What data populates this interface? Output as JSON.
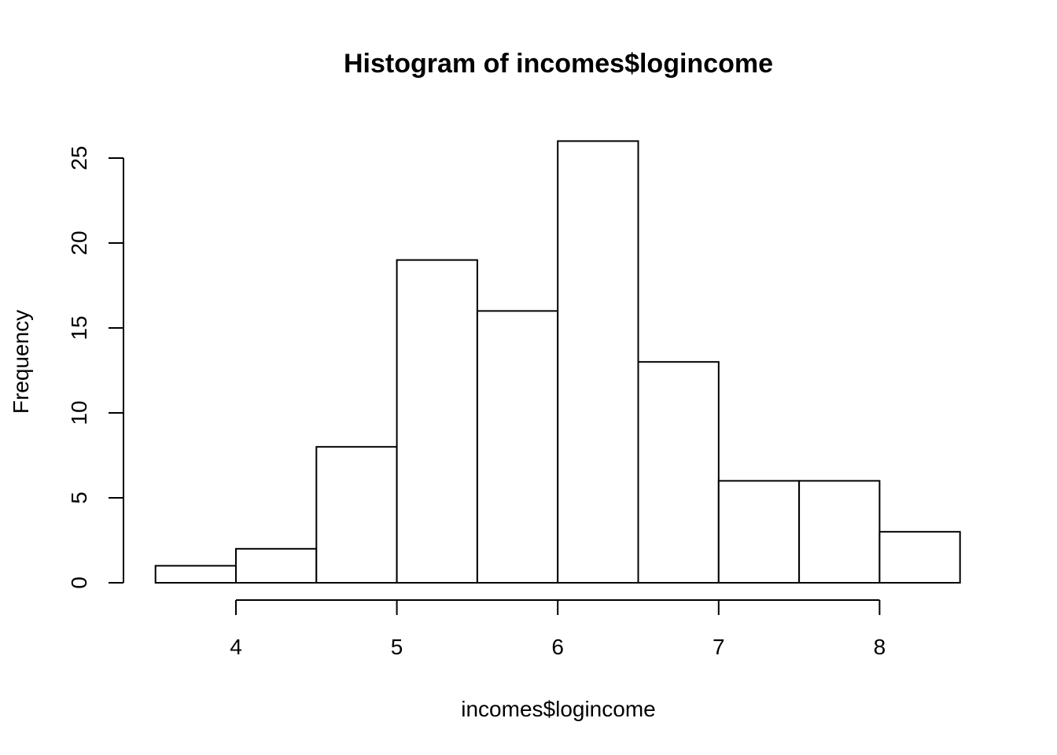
{
  "chart_data": {
    "type": "bar",
    "subtype": "histogram",
    "title": "Histogram of incomes$logincome",
    "xlabel": "incomes$logincome",
    "ylabel": "Frequency",
    "bins": [
      {
        "from": 3.5,
        "to": 4.0,
        "count": 1
      },
      {
        "from": 4.0,
        "to": 4.5,
        "count": 2
      },
      {
        "from": 4.5,
        "to": 5.0,
        "count": 8
      },
      {
        "from": 5.0,
        "to": 5.5,
        "count": 19
      },
      {
        "from": 5.5,
        "to": 6.0,
        "count": 16
      },
      {
        "from": 6.0,
        "to": 6.5,
        "count": 26
      },
      {
        "from": 6.5,
        "to": 7.0,
        "count": 13
      },
      {
        "from": 7.0,
        "to": 7.5,
        "count": 6
      },
      {
        "from": 7.5,
        "to": 8.0,
        "count": 6
      },
      {
        "from": 8.0,
        "to": 8.5,
        "count": 3
      }
    ],
    "x_ticks": [
      4,
      5,
      6,
      7,
      8
    ],
    "y_ticks": [
      0,
      5,
      10,
      15,
      20,
      25
    ],
    "xlim": [
      3.5,
      8.5
    ],
    "ylim": [
      0,
      26
    ],
    "grid": false,
    "legend": "none",
    "bar_fill": "#ffffff",
    "bar_stroke": "#000000"
  }
}
